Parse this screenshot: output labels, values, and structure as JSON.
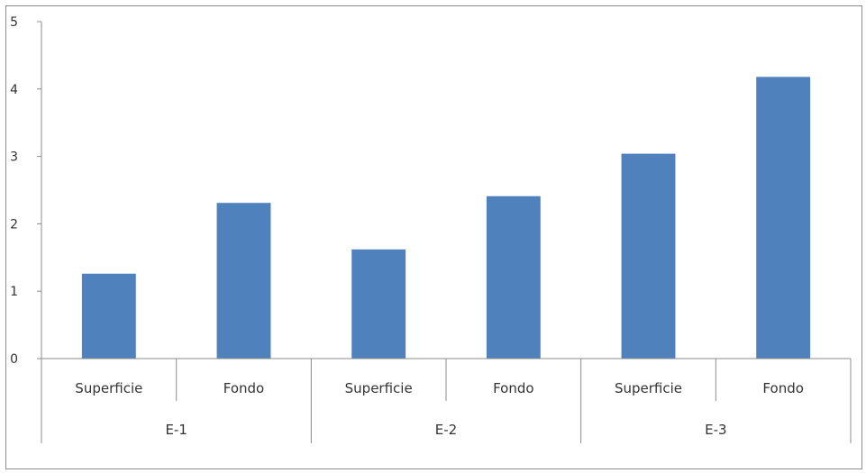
{
  "chart_data": {
    "type": "bar",
    "title": "",
    "xlabel": "",
    "ylabel": "",
    "ylim": [
      0,
      5
    ],
    "yticks": [
      0,
      1,
      2,
      3,
      4,
      5
    ],
    "grid": false,
    "legend": "none",
    "bar_color": "#4F81BD",
    "groups": [
      {
        "label": "E-1",
        "categories": [
          "Superficie",
          "Fondo"
        ],
        "values": [
          1.26,
          2.31
        ]
      },
      {
        "label": "E-2",
        "categories": [
          "Superficie",
          "Fondo"
        ],
        "values": [
          1.62,
          2.41
        ]
      },
      {
        "label": "E-3",
        "categories": [
          "Superficie",
          "Fondo"
        ],
        "values": [
          3.04,
          4.18
        ]
      }
    ]
  }
}
